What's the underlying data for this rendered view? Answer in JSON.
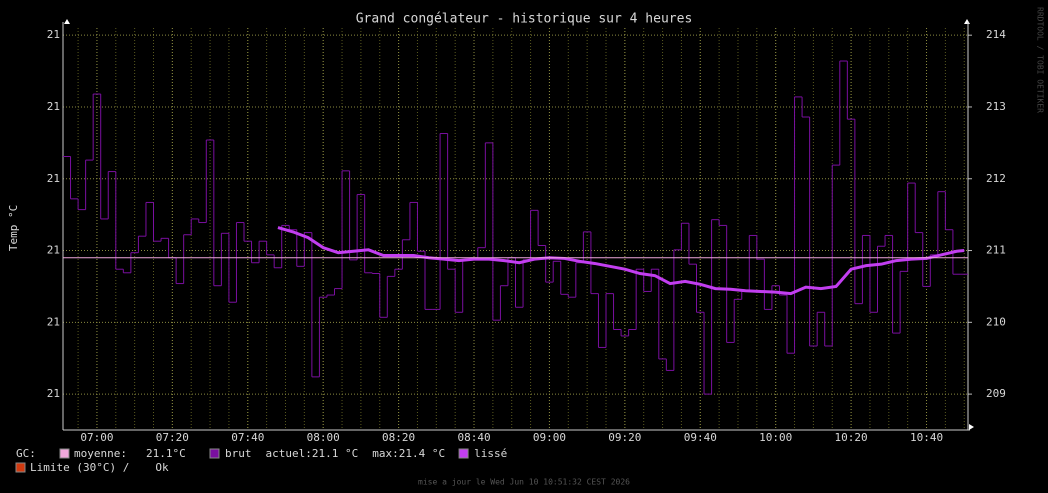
{
  "chart_data": {
    "type": "step",
    "title": "Grand congélateur - historique sur 4 heures",
    "y_label": "Temp °C",
    "side_text": "RRDTOOL / TOBI OETIKER",
    "footer": "mise a jour le Wed Jun 10 10:51:32 CEST 2026",
    "xlim": [
      411,
      651
    ],
    "xticks": [
      {
        "value": 420,
        "label": "07:00"
      },
      {
        "value": 440,
        "label": "07:20"
      },
      {
        "value": 460,
        "label": "07:40"
      },
      {
        "value": 480,
        "label": "08:00"
      },
      {
        "value": 500,
        "label": "08:20"
      },
      {
        "value": 520,
        "label": "08:40"
      },
      {
        "value": 540,
        "label": "09:00"
      },
      {
        "value": 560,
        "label": "09:20"
      },
      {
        "value": 580,
        "label": "09:40"
      },
      {
        "value": 600,
        "label": "10:00"
      },
      {
        "value": 620,
        "label": "10:20"
      },
      {
        "value": 640,
        "label": "10:40"
      }
    ],
    "ylim": [
      20.85,
      21.41
    ],
    "yticks": [
      {
        "value": 20.9,
        "label": "21"
      },
      {
        "value": 21.0,
        "label": "21"
      },
      {
        "value": 21.1,
        "label": "21"
      },
      {
        "value": 21.2,
        "label": "21"
      },
      {
        "value": 21.3,
        "label": "21"
      },
      {
        "value": 21.4,
        "label": "21"
      }
    ],
    "y2lim": [
      208.5,
      214.1
    ],
    "y2ticks": [
      209,
      210,
      211,
      212,
      213,
      214
    ],
    "grid": true,
    "legend_prefix": "GC:",
    "hline": {
      "name": "moyenne:",
      "value": 210.9,
      "label": "21.1°C",
      "color": "#f0a8dc"
    },
    "series": [
      {
        "name": "brut",
        "color": "#7a0fa0",
        "axis": "y2",
        "style": "step",
        "stats": [
          "actuel:21.1 °C",
          "max:21.4 °C"
        ],
        "x": [
          411,
          413,
          415,
          417,
          419,
          421,
          423,
          425,
          427,
          429,
          431,
          433,
          435,
          437,
          439,
          441,
          443,
          445,
          447,
          449,
          451,
          453,
          455,
          457,
          459,
          461,
          463,
          465,
          467,
          469,
          471,
          473,
          475,
          477,
          479,
          481,
          483,
          485,
          487,
          489,
          491,
          493,
          495,
          497,
          499,
          501,
          503,
          505,
          507,
          509,
          511,
          513,
          515,
          517,
          519,
          521,
          523,
          525,
          527,
          529,
          531,
          533,
          535,
          537,
          539,
          541,
          543,
          545,
          547,
          549,
          551,
          553,
          555,
          557,
          559,
          561,
          563,
          565,
          567,
          569,
          571,
          573,
          575,
          577,
          579,
          581,
          583,
          585,
          587,
          589,
          591,
          593,
          595,
          597,
          599,
          601,
          603,
          605,
          607,
          609,
          611,
          613,
          615,
          617,
          619,
          621,
          623,
          625,
          627,
          629,
          631,
          633,
          635,
          637,
          639,
          641,
          643,
          645,
          647,
          649
        ],
        "values": [
          212.31,
          211.72,
          211.57,
          212.26,
          213.18,
          211.44,
          212.1,
          210.74,
          210.69,
          210.97,
          211.2,
          211.67,
          211.13,
          211.17,
          210.9,
          210.54,
          211.22,
          211.44,
          211.39,
          212.54,
          210.51,
          211.24,
          210.28,
          211.39,
          211.13,
          210.83,
          211.13,
          210.94,
          210.76,
          211.35,
          211.29,
          210.78,
          211.25,
          209.24,
          210.35,
          210.38,
          210.47,
          212.11,
          210.87,
          211.78,
          210.69,
          210.68,
          210.07,
          210.64,
          210.74,
          211.15,
          211.67,
          210.99,
          210.18,
          210.18,
          212.63,
          210.74,
          210.14,
          210.87,
          210.9,
          211.04,
          212.5,
          210.03,
          210.51,
          210.9,
          210.21,
          210.87,
          211.56,
          211.07,
          210.56,
          210.85,
          210.39,
          210.35,
          210.83,
          211.26,
          210.4,
          209.65,
          210.4,
          209.9,
          209.81,
          209.9,
          210.74,
          210.43,
          210.74,
          209.49,
          209.33,
          211.01,
          211.38,
          210.81,
          210.14,
          209.0,
          211.43,
          211.35,
          209.72,
          210.32,
          210.43,
          211.21,
          210.88,
          210.18,
          210.51,
          210.38,
          209.57,
          213.14,
          212.86,
          209.67,
          210.14,
          209.67,
          212.19,
          213.64,
          212.83,
          210.26,
          211.21,
          210.14,
          211.06,
          211.21,
          209.85,
          210.71,
          211.94,
          211.25,
          210.5,
          210.94,
          211.82,
          211.29,
          210.67,
          210.67
        ]
      },
      {
        "name": "lissé",
        "color": "#c23ef0",
        "axis": "y2",
        "style": "thick",
        "x": [
          468,
          472,
          476,
          480,
          484,
          488,
          492,
          496,
          500,
          504,
          508,
          512,
          516,
          520,
          524,
          528,
          532,
          536,
          540,
          544,
          548,
          552,
          556,
          560,
          564,
          568,
          572,
          576,
          580,
          584,
          588,
          592,
          596,
          600,
          604,
          608,
          612,
          616,
          620,
          624,
          628,
          632,
          636,
          640,
          644,
          648,
          650
        ],
        "values": [
          211.32,
          211.26,
          211.18,
          211.04,
          210.97,
          210.99,
          211.01,
          210.93,
          210.93,
          210.93,
          210.9,
          210.88,
          210.86,
          210.88,
          210.88,
          210.86,
          210.83,
          210.88,
          210.9,
          210.89,
          210.85,
          210.82,
          210.78,
          210.74,
          210.68,
          210.65,
          210.54,
          210.57,
          210.53,
          210.47,
          210.46,
          210.44,
          210.43,
          210.42,
          210.4,
          210.49,
          210.47,
          210.5,
          210.74,
          210.79,
          210.81,
          210.86,
          210.88,
          210.89,
          210.94,
          210.99,
          211.0
        ]
      }
    ],
    "limit": {
      "name": "Limite (30°C) /",
      "status": "Ok",
      "color": "#d03a10"
    }
  }
}
